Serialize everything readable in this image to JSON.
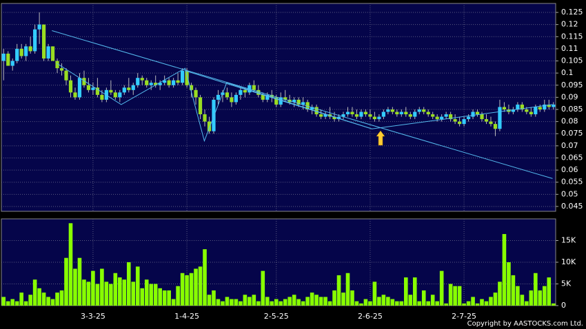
{
  "chart_data": [
    {
      "type": "candlestick",
      "up_color": "#33ccff",
      "down_color": "#99dd22",
      "grid": true,
      "ylim": [
        0.043,
        0.1287
      ],
      "yticks": [
        0.045,
        0.05,
        0.055,
        0.06,
        0.065,
        0.07,
        0.075,
        0.08,
        0.085,
        0.09,
        0.095,
        0.1,
        0.105,
        0.11,
        0.115,
        0.12,
        0.125
      ],
      "categories": [
        null,
        null,
        null,
        null,
        null,
        null,
        null,
        null,
        null,
        null,
        null,
        null,
        null,
        null,
        null,
        null,
        null,
        null,
        null,
        null,
        "3-3-25",
        null,
        null,
        null,
        null,
        null,
        null,
        null,
        null,
        null,
        null,
        null,
        null,
        null,
        null,
        null,
        null,
        null,
        null,
        null,
        null,
        "1-4-25",
        null,
        null,
        null,
        null,
        null,
        null,
        null,
        null,
        null,
        null,
        null,
        null,
        null,
        null,
        null,
        null,
        null,
        null,
        null,
        "2-5-25",
        null,
        null,
        null,
        null,
        null,
        null,
        null,
        null,
        null,
        null,
        null,
        null,
        null,
        null,
        null,
        null,
        null,
        null,
        null,
        null,
        "2-6-25",
        null,
        null,
        null,
        null,
        null,
        null,
        null,
        null,
        null,
        null,
        null,
        null,
        null,
        null,
        null,
        null,
        null,
        null,
        null,
        null,
        "2-7-25",
        null,
        null,
        null,
        null,
        null,
        null,
        null,
        null,
        null,
        null,
        null,
        null,
        null,
        null,
        null,
        null,
        null,
        null,
        null,
        null
      ],
      "open": [
        0.105,
        0.108,
        0.103,
        0.105,
        0.11,
        0.107,
        0.111,
        0.109,
        0.118,
        0.12,
        0.106,
        0.111,
        0.105,
        0.102,
        0.101,
        0.097,
        0.092,
        0.09,
        0.098,
        0.095,
        0.093,
        0.094,
        0.091,
        0.089,
        0.093,
        0.092,
        0.09,
        0.092,
        0.094,
        0.093,
        0.095,
        0.098,
        0.097,
        0.095,
        0.096,
        0.095,
        0.096,
        0.097,
        0.095,
        0.097,
        0.096,
        0.101,
        0.095,
        0.093,
        0.09,
        0.083,
        0.08,
        0.076,
        0.089,
        0.091,
        0.092,
        0.09,
        0.088,
        0.091,
        0.093,
        0.092,
        0.095,
        0.093,
        0.091,
        0.089,
        0.091,
        0.09,
        0.087,
        0.09,
        0.089,
        0.088,
        0.089,
        0.087,
        0.088,
        0.085,
        0.086,
        0.083,
        0.082,
        0.083,
        0.082,
        0.081,
        0.082,
        0.083,
        0.084,
        0.083,
        0.082,
        0.084,
        0.083,
        0.082,
        0.081,
        0.082,
        0.084,
        0.085,
        0.084,
        0.083,
        0.084,
        0.083,
        0.082,
        0.084,
        0.085,
        0.084,
        0.083,
        0.082,
        0.081,
        0.082,
        0.083,
        0.081,
        0.08,
        0.079,
        0.081,
        0.082,
        0.084,
        0.083,
        0.081,
        0.08,
        0.079,
        0.077,
        0.086,
        0.085,
        0.084,
        0.085,
        0.087,
        0.085,
        0.084,
        0.083,
        0.086,
        0.085,
        0.087,
        0.086
      ],
      "high": [
        0.11,
        0.109,
        0.106,
        0.112,
        0.112,
        0.112,
        0.115,
        0.12,
        0.125,
        0.12,
        0.112,
        0.111,
        0.106,
        0.104,
        0.102,
        0.099,
        0.094,
        0.1,
        0.101,
        0.098,
        0.096,
        0.098,
        0.093,
        0.094,
        0.097,
        0.093,
        0.093,
        0.095,
        0.098,
        0.096,
        0.1,
        0.099,
        0.098,
        0.097,
        0.099,
        0.097,
        0.099,
        0.098,
        0.098,
        0.1,
        0.102,
        0.102,
        0.096,
        0.094,
        0.091,
        0.085,
        0.082,
        0.09,
        0.093,
        0.093,
        0.094,
        0.092,
        0.092,
        0.094,
        0.094,
        0.096,
        0.097,
        0.095,
        0.092,
        0.092,
        0.093,
        0.091,
        0.092,
        0.093,
        0.091,
        0.09,
        0.09,
        0.09,
        0.089,
        0.087,
        0.087,
        0.085,
        0.084,
        0.086,
        0.084,
        0.083,
        0.084,
        0.086,
        0.086,
        0.085,
        0.085,
        0.085,
        0.085,
        0.084,
        0.083,
        0.085,
        0.086,
        0.086,
        0.085,
        0.085,
        0.086,
        0.084,
        0.085,
        0.086,
        0.086,
        0.085,
        0.084,
        0.083,
        0.083,
        0.084,
        0.084,
        0.083,
        0.082,
        0.082,
        0.083,
        0.085,
        0.085,
        0.084,
        0.083,
        0.082,
        0.08,
        0.089,
        0.088,
        0.087,
        0.086,
        0.088,
        0.088,
        0.086,
        0.086,
        0.087,
        0.087,
        0.089,
        0.089,
        0.088
      ],
      "low": [
        0.097,
        0.103,
        0.101,
        0.104,
        0.106,
        0.105,
        0.108,
        0.108,
        0.112,
        0.105,
        0.105,
        0.105,
        0.1,
        0.099,
        0.095,
        0.09,
        0.089,
        0.089,
        0.094,
        0.092,
        0.091,
        0.09,
        0.088,
        0.088,
        0.091,
        0.089,
        0.088,
        0.091,
        0.092,
        0.091,
        0.094,
        0.095,
        0.094,
        0.093,
        0.094,
        0.093,
        0.095,
        0.094,
        0.094,
        0.095,
        0.095,
        0.094,
        0.09,
        0.087,
        0.081,
        0.078,
        0.075,
        0.075,
        0.087,
        0.088,
        0.089,
        0.086,
        0.087,
        0.089,
        0.09,
        0.091,
        0.092,
        0.09,
        0.088,
        0.088,
        0.088,
        0.086,
        0.086,
        0.088,
        0.087,
        0.086,
        0.086,
        0.085,
        0.084,
        0.083,
        0.082,
        0.081,
        0.081,
        0.081,
        0.08,
        0.08,
        0.081,
        0.082,
        0.082,
        0.081,
        0.081,
        0.082,
        0.081,
        0.08,
        0.08,
        0.081,
        0.083,
        0.083,
        0.082,
        0.082,
        0.082,
        0.081,
        0.081,
        0.083,
        0.083,
        0.082,
        0.081,
        0.08,
        0.08,
        0.081,
        0.08,
        0.079,
        0.078,
        0.078,
        0.08,
        0.081,
        0.082,
        0.08,
        0.079,
        0.078,
        0.074,
        0.076,
        0.084,
        0.083,
        0.083,
        0.084,
        0.084,
        0.083,
        0.082,
        0.082,
        0.084,
        0.084,
        0.085,
        0.085
      ],
      "close": [
        0.108,
        0.103,
        0.105,
        0.11,
        0.107,
        0.111,
        0.109,
        0.118,
        0.12,
        0.106,
        0.111,
        0.105,
        0.102,
        0.101,
        0.097,
        0.092,
        0.09,
        0.098,
        0.095,
        0.093,
        0.094,
        0.091,
        0.089,
        0.093,
        0.092,
        0.09,
        0.092,
        0.094,
        0.093,
        0.095,
        0.098,
        0.097,
        0.095,
        0.096,
        0.095,
        0.096,
        0.097,
        0.095,
        0.097,
        0.096,
        0.101,
        0.095,
        0.093,
        0.09,
        0.083,
        0.08,
        0.076,
        0.089,
        0.091,
        0.092,
        0.09,
        0.088,
        0.091,
        0.093,
        0.092,
        0.095,
        0.093,
        0.091,
        0.089,
        0.091,
        0.09,
        0.087,
        0.09,
        0.089,
        0.088,
        0.089,
        0.087,
        0.088,
        0.085,
        0.086,
        0.083,
        0.082,
        0.083,
        0.082,
        0.081,
        0.082,
        0.083,
        0.084,
        0.083,
        0.082,
        0.084,
        0.083,
        0.082,
        0.081,
        0.082,
        0.084,
        0.085,
        0.084,
        0.083,
        0.084,
        0.083,
        0.082,
        0.084,
        0.085,
        0.084,
        0.083,
        0.082,
        0.081,
        0.082,
        0.083,
        0.081,
        0.08,
        0.079,
        0.081,
        0.082,
        0.084,
        0.083,
        0.081,
        0.08,
        0.079,
        0.077,
        0.086,
        0.085,
        0.084,
        0.085,
        0.087,
        0.085,
        0.084,
        0.083,
        0.086,
        0.085,
        0.087,
        0.086,
        0.087
      ],
      "trendlines": [
        {
          "color": "#55bbee",
          "points": [
            [
              10.8,
              0.1175
            ],
            [
              122.8,
              0.0565
            ]
          ]
        },
        {
          "color": "#55bbee",
          "points": [
            [
              40.6,
              0.101
            ],
            [
              82.4,
              0.077
            ]
          ]
        },
        {
          "color": "#55bbee",
          "points": [
            [
              11.9,
              0.104
            ],
            [
              26.3,
              0.087
            ],
            [
              40.6,
              0.102
            ],
            [
              44.9,
              0.072
            ],
            [
              49.9,
              0.096
            ],
            [
              82.4,
              0.077
            ],
            [
              122.8,
              0.087
            ]
          ]
        }
      ]
    },
    {
      "type": "bar",
      "color": "#88ff00",
      "grid": true,
      "ylim": [
        0,
        20000
      ],
      "yticks": [
        0,
        {
          "value": 5000,
          "label": "5K"
        },
        {
          "value": 10000,
          "label": "10K"
        },
        {
          "value": 15000,
          "label": "15K"
        }
      ],
      "values": [
        2000,
        1000,
        1500,
        1000,
        3000,
        1000,
        2500,
        6000,
        4000,
        3000,
        2000,
        1500,
        3000,
        3500,
        11000,
        19000,
        8500,
        11000,
        6000,
        5500,
        8000,
        5000,
        8500,
        5500,
        5000,
        7500,
        6500,
        6000,
        10000,
        5500,
        9000,
        4000,
        6000,
        5000,
        5000,
        4000,
        3500,
        3500,
        1500,
        4500,
        7500,
        7000,
        7500,
        8500,
        9000,
        13000,
        2500,
        3500,
        1500,
        1000,
        2000,
        1500,
        1500,
        1000,
        2500,
        2000,
        2500,
        1000,
        8000,
        2000,
        1000,
        1500,
        1000,
        1500,
        2000,
        2500,
        1500,
        1000,
        2000,
        3000,
        2500,
        2000,
        2000,
        1000,
        3500,
        7000,
        3000,
        7500,
        3500,
        1000,
        500,
        1500,
        1000,
        5500,
        2000,
        2500,
        2000,
        1500,
        1000,
        1000,
        6500,
        2500,
        6500,
        1000,
        3500,
        1000,
        2500,
        1000,
        8000,
        500,
        5000,
        4500,
        4500,
        500,
        1000,
        2000,
        500,
        1500,
        1000,
        2000,
        3000,
        5500,
        16500,
        10000,
        7000,
        4500,
        2500,
        1000,
        3500,
        7500,
        3500,
        4500,
        6500,
        500
      ]
    }
  ],
  "copyright": "Copyright by AASTOCKS.com Ltd."
}
